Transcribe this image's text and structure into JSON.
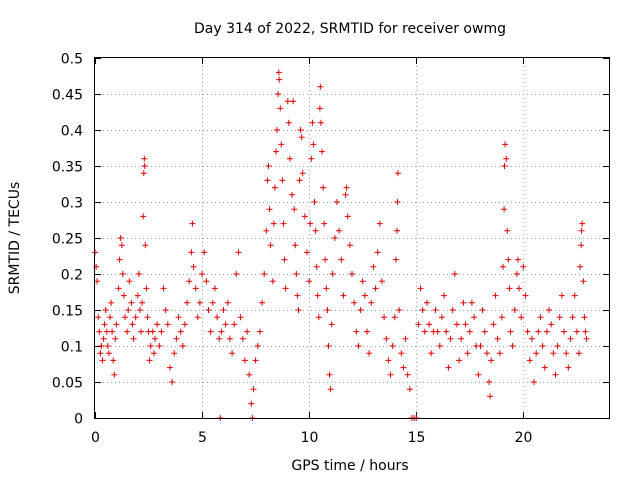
{
  "chart_data": {
    "type": "scatter",
    "title": "Day 314 of 2022, SRMTID for receiver owmg",
    "xlabel": "GPS time / hours",
    "ylabel": "SRMTID / TECUs",
    "xlim": [
      0,
      24
    ],
    "ylim": [
      0,
      0.5
    ],
    "xticks": [
      0,
      5,
      10,
      15,
      20
    ],
    "xtick_labels": [
      "0",
      "5",
      "10",
      "15",
      "20"
    ],
    "yticks": [
      0,
      0.05,
      0.1,
      0.15,
      0.2,
      0.25,
      0.3,
      0.35,
      0.4,
      0.45,
      0.5
    ],
    "ytick_labels": [
      "0",
      "0.05",
      "0.1",
      "0.15",
      "0.2",
      "0.25",
      "0.3",
      "0.35",
      "0.4",
      "0.45",
      "0.5"
    ],
    "grid": true,
    "marker": "+",
    "series": [
      {
        "name": "SRMTID",
        "color": "#e00000",
        "points": [
          [
            0.0,
            0.23
          ],
          [
            0.05,
            0.21
          ],
          [
            0.1,
            0.19
          ],
          [
            0.15,
            0.14
          ],
          [
            0.2,
            0.12
          ],
          [
            0.25,
            0.09
          ],
          [
            0.3,
            0.1
          ],
          [
            0.35,
            0.08
          ],
          [
            0.4,
            0.11
          ],
          [
            0.45,
            0.13
          ],
          [
            0.5,
            0.15
          ],
          [
            0.55,
            0.12
          ],
          [
            0.6,
            0.1
          ],
          [
            0.65,
            0.09
          ],
          [
            0.7,
            0.14
          ],
          [
            0.75,
            0.16
          ],
          [
            0.8,
            0.12
          ],
          [
            0.85,
            0.08
          ],
          [
            0.9,
            0.06
          ],
          [
            0.95,
            0.11
          ],
          [
            1.0,
            0.13
          ],
          [
            1.1,
            0.18
          ],
          [
            1.15,
            0.22
          ],
          [
            1.2,
            0.25
          ],
          [
            1.25,
            0.24
          ],
          [
            1.3,
            0.2
          ],
          [
            1.35,
            0.17
          ],
          [
            1.4,
            0.14
          ],
          [
            1.5,
            0.12
          ],
          [
            1.55,
            0.15
          ],
          [
            1.6,
            0.19
          ],
          [
            1.7,
            0.16
          ],
          [
            1.75,
            0.13
          ],
          [
            1.8,
            0.11
          ],
          [
            1.9,
            0.14
          ],
          [
            2.0,
            0.17
          ],
          [
            2.05,
            0.2
          ],
          [
            2.1,
            0.15
          ],
          [
            2.15,
            0.12
          ],
          [
            2.2,
            0.16
          ],
          [
            2.25,
            0.28
          ],
          [
            2.28,
            0.34
          ],
          [
            2.3,
            0.36
          ],
          [
            2.32,
            0.35
          ],
          [
            2.35,
            0.24
          ],
          [
            2.4,
            0.18
          ],
          [
            2.45,
            0.14
          ],
          [
            2.5,
            0.12
          ],
          [
            2.55,
            0.08
          ],
          [
            2.6,
            0.1
          ],
          [
            2.7,
            0.12
          ],
          [
            2.75,
            0.09
          ],
          [
            2.8,
            0.11
          ],
          [
            2.9,
            0.13
          ],
          [
            3.0,
            0.1
          ],
          [
            3.1,
            0.12
          ],
          [
            3.2,
            0.18
          ],
          [
            3.3,
            0.15
          ],
          [
            3.4,
            0.13
          ],
          [
            3.5,
            0.07
          ],
          [
            3.6,
            0.05
          ],
          [
            3.7,
            0.09
          ],
          [
            3.8,
            0.11
          ],
          [
            3.9,
            0.14
          ],
          [
            4.0,
            0.12
          ],
          [
            4.1,
            0.1
          ],
          [
            4.2,
            0.13
          ],
          [
            4.3,
            0.16
          ],
          [
            4.4,
            0.19
          ],
          [
            4.5,
            0.23
          ],
          [
            4.55,
            0.27
          ],
          [
            4.6,
            0.21
          ],
          [
            4.7,
            0.18
          ],
          [
            4.8,
            0.14
          ],
          [
            4.9,
            0.16
          ],
          [
            5.0,
            0.2
          ],
          [
            5.1,
            0.23
          ],
          [
            5.2,
            0.19
          ],
          [
            5.3,
            0.15
          ],
          [
            5.4,
            0.12
          ],
          [
            5.5,
            0.16
          ],
          [
            5.6,
            0.18
          ],
          [
            5.7,
            0.14
          ],
          [
            5.8,
            0.11
          ],
          [
            5.85,
            0.0
          ],
          [
            5.9,
            0.12
          ],
          [
            6.0,
            0.15
          ],
          [
            6.1,
            0.13
          ],
          [
            6.2,
            0.16
          ],
          [
            6.3,
            0.11
          ],
          [
            6.4,
            0.09
          ],
          [
            6.5,
            0.13
          ],
          [
            6.6,
            0.2
          ],
          [
            6.7,
            0.23
          ],
          [
            6.8,
            0.14
          ],
          [
            6.9,
            0.11
          ],
          [
            7.0,
            0.08
          ],
          [
            7.1,
            0.12
          ],
          [
            7.2,
            0.06
          ],
          [
            7.3,
            0.02
          ],
          [
            7.35,
            0.0
          ],
          [
            7.4,
            0.04
          ],
          [
            7.5,
            0.08
          ],
          [
            7.6,
            0.1
          ],
          [
            7.7,
            0.12
          ],
          [
            7.8,
            0.16
          ],
          [
            7.9,
            0.2
          ],
          [
            8.0,
            0.26
          ],
          [
            8.05,
            0.33
          ],
          [
            8.1,
            0.35
          ],
          [
            8.15,
            0.29
          ],
          [
            8.2,
            0.24
          ],
          [
            8.3,
            0.19
          ],
          [
            8.35,
            0.27
          ],
          [
            8.4,
            0.32
          ],
          [
            8.45,
            0.37
          ],
          [
            8.5,
            0.4
          ],
          [
            8.55,
            0.45
          ],
          [
            8.58,
            0.48
          ],
          [
            8.6,
            0.47
          ],
          [
            8.65,
            0.43
          ],
          [
            8.7,
            0.38
          ],
          [
            8.75,
            0.33
          ],
          [
            8.8,
            0.27
          ],
          [
            8.85,
            0.22
          ],
          [
            8.9,
            0.18
          ],
          [
            9.0,
            0.44
          ],
          [
            9.05,
            0.41
          ],
          [
            9.1,
            0.36
          ],
          [
            9.2,
            0.31
          ],
          [
            9.25,
            0.44
          ],
          [
            9.3,
            0.29
          ],
          [
            9.35,
            0.24
          ],
          [
            9.4,
            0.2
          ],
          [
            9.45,
            0.17
          ],
          [
            9.5,
            0.15
          ],
          [
            9.55,
            0.33
          ],
          [
            9.6,
            0.4
          ],
          [
            9.65,
            0.39
          ],
          [
            9.7,
            0.34
          ],
          [
            9.8,
            0.28
          ],
          [
            9.9,
            0.23
          ],
          [
            10.0,
            0.19
          ],
          [
            10.05,
            0.27
          ],
          [
            10.1,
            0.36
          ],
          [
            10.15,
            0.41
          ],
          [
            10.2,
            0.38
          ],
          [
            10.25,
            0.3
          ],
          [
            10.3,
            0.26
          ],
          [
            10.35,
            0.21
          ],
          [
            10.4,
            0.17
          ],
          [
            10.45,
            0.14
          ],
          [
            10.5,
            0.43
          ],
          [
            10.52,
            0.46
          ],
          [
            10.55,
            0.41
          ],
          [
            10.6,
            0.37
          ],
          [
            10.65,
            0.32
          ],
          [
            10.7,
            0.27
          ],
          [
            10.75,
            0.22
          ],
          [
            10.8,
            0.18
          ],
          [
            10.85,
            0.15
          ],
          [
            10.9,
            0.1
          ],
          [
            10.95,
            0.06
          ],
          [
            11.0,
            0.04
          ],
          [
            11.05,
            0.13
          ],
          [
            11.1,
            0.2
          ],
          [
            11.2,
            0.25
          ],
          [
            11.3,
            0.3
          ],
          [
            11.4,
            0.26
          ],
          [
            11.5,
            0.22
          ],
          [
            11.6,
            0.17
          ],
          [
            11.7,
            0.31
          ],
          [
            11.75,
            0.32
          ],
          [
            11.8,
            0.28
          ],
          [
            11.9,
            0.24
          ],
          [
            12.0,
            0.2
          ],
          [
            12.1,
            0.16
          ],
          [
            12.2,
            0.12
          ],
          [
            12.3,
            0.1
          ],
          [
            12.4,
            0.15
          ],
          [
            12.5,
            0.19
          ],
          [
            12.6,
            0.17
          ],
          [
            12.7,
            0.12
          ],
          [
            12.8,
            0.09
          ],
          [
            12.9,
            0.16
          ],
          [
            13.0,
            0.21
          ],
          [
            13.1,
            0.18
          ],
          [
            13.2,
            0.23
          ],
          [
            13.3,
            0.27
          ],
          [
            13.4,
            0.19
          ],
          [
            13.5,
            0.14
          ],
          [
            13.6,
            0.11
          ],
          [
            13.7,
            0.08
          ],
          [
            13.8,
            0.06
          ],
          [
            13.9,
            0.1
          ],
          [
            14.0,
            0.14
          ],
          [
            14.05,
            0.22
          ],
          [
            14.1,
            0.26
          ],
          [
            14.12,
            0.3
          ],
          [
            14.15,
            0.34
          ],
          [
            14.2,
            0.15
          ],
          [
            14.3,
            0.09
          ],
          [
            14.4,
            0.07
          ],
          [
            14.5,
            0.11
          ],
          [
            14.6,
            0.06
          ],
          [
            14.7,
            0.04
          ],
          [
            14.8,
            0.0
          ],
          [
            14.9,
            0.0
          ],
          [
            15.0,
            0.0
          ],
          [
            15.1,
            0.13
          ],
          [
            15.2,
            0.18
          ],
          [
            15.3,
            0.15
          ],
          [
            15.4,
            0.12
          ],
          [
            15.5,
            0.16
          ],
          [
            15.6,
            0.13
          ],
          [
            15.7,
            0.09
          ],
          [
            15.8,
            0.12
          ],
          [
            15.9,
            0.15
          ],
          [
            16.0,
            0.12
          ],
          [
            16.1,
            0.1
          ],
          [
            16.2,
            0.14
          ],
          [
            16.3,
            0.17
          ],
          [
            16.4,
            0.12
          ],
          [
            16.5,
            0.07
          ],
          [
            16.6,
            0.11
          ],
          [
            16.7,
            0.15
          ],
          [
            16.8,
            0.2
          ],
          [
            16.9,
            0.13
          ],
          [
            17.0,
            0.08
          ],
          [
            17.1,
            0.11
          ],
          [
            17.2,
            0.16
          ],
          [
            17.3,
            0.13
          ],
          [
            17.4,
            0.09
          ],
          [
            17.5,
            0.12
          ],
          [
            17.6,
            0.16
          ],
          [
            17.7,
            0.14
          ],
          [
            17.8,
            0.1
          ],
          [
            17.9,
            0.06
          ],
          [
            18.0,
            0.1
          ],
          [
            18.1,
            0.15
          ],
          [
            18.2,
            0.12
          ],
          [
            18.3,
            0.09
          ],
          [
            18.4,
            0.05
          ],
          [
            18.45,
            0.03
          ],
          [
            18.5,
            0.08
          ],
          [
            18.6,
            0.13
          ],
          [
            18.7,
            0.17
          ],
          [
            18.8,
            0.11
          ],
          [
            18.9,
            0.09
          ],
          [
            19.0,
            0.14
          ],
          [
            19.05,
            0.21
          ],
          [
            19.1,
            0.29
          ],
          [
            19.12,
            0.35
          ],
          [
            19.15,
            0.38
          ],
          [
            19.2,
            0.36
          ],
          [
            19.25,
            0.26
          ],
          [
            19.3,
            0.22
          ],
          [
            19.35,
            0.18
          ],
          [
            19.4,
            0.12
          ],
          [
            19.5,
            0.1
          ],
          [
            19.6,
            0.15
          ],
          [
            19.7,
            0.2
          ],
          [
            19.75,
            0.22
          ],
          [
            19.8,
            0.18
          ],
          [
            19.9,
            0.14
          ],
          [
            20.0,
            0.21
          ],
          [
            20.1,
            0.17
          ],
          [
            20.2,
            0.12
          ],
          [
            20.3,
            0.08
          ],
          [
            20.4,
            0.11
          ],
          [
            20.5,
            0.05
          ],
          [
            20.6,
            0.09
          ],
          [
            20.7,
            0.12
          ],
          [
            20.8,
            0.14
          ],
          [
            20.9,
            0.1
          ],
          [
            21.0,
            0.07
          ],
          [
            21.1,
            0.12
          ],
          [
            21.2,
            0.15
          ],
          [
            21.3,
            0.13
          ],
          [
            21.4,
            0.09
          ],
          [
            21.5,
            0.06
          ],
          [
            21.6,
            0.1
          ],
          [
            21.7,
            0.14
          ],
          [
            21.8,
            0.17
          ],
          [
            21.9,
            0.12
          ],
          [
            22.0,
            0.09
          ],
          [
            22.1,
            0.07
          ],
          [
            22.2,
            0.11
          ],
          [
            22.3,
            0.14
          ],
          [
            22.4,
            0.17
          ],
          [
            22.5,
            0.12
          ],
          [
            22.6,
            0.09
          ],
          [
            22.65,
            0.21
          ],
          [
            22.7,
            0.24
          ],
          [
            22.72,
            0.26
          ],
          [
            22.75,
            0.27
          ],
          [
            22.8,
            0.19
          ],
          [
            22.85,
            0.14
          ],
          [
            22.9,
            0.12
          ],
          [
            22.95,
            0.11
          ]
        ]
      }
    ]
  }
}
